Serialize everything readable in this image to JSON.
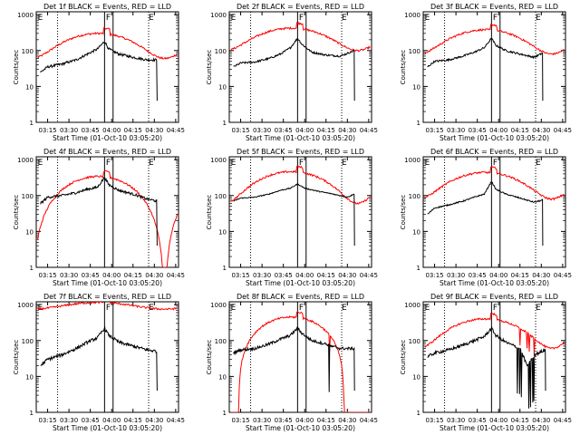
{
  "chart_data": {
    "type": "line",
    "grid_rows": 3,
    "grid_cols": 3,
    "shared": {
      "xlabel": "Start Time (01-Oct-10 03:05:20)",
      "ylabel": "Counts/sec",
      "x_ticks": [
        "03:15",
        "03:30",
        "03:45",
        "04:00",
        "04:15",
        "04:30",
        "04:45"
      ],
      "x_tick_minutes": [
        0,
        15,
        30,
        45,
        60,
        75,
        90
      ],
      "y_ticks": [
        "1",
        "10",
        "100",
        "1000"
      ],
      "y_tick_values": [
        1,
        10,
        100,
        1000
      ],
      "xlim_minutes": [
        -8,
        92
      ],
      "ylim": [
        1,
        1200
      ],
      "y_scale": "log",
      "series_colors": {
        "events": "#000000",
        "lld": "#ff0000"
      },
      "dotted_verticals_minutes": [
        7,
        71
      ],
      "solid_verticals_minutes": [
        40,
        46
      ],
      "flag_letters": [
        {
          "text": "E",
          "minute": -7
        },
        {
          "text": "F",
          "minute": 41
        },
        {
          "text": "E",
          "minute": 71
        }
      ]
    },
    "panels": [
      {
        "title": "Det 1f BLACK = Events, RED = LLD",
        "lld_base": 180,
        "lld_amp": 120,
        "events_curve": [
          [
            -5,
            25
          ],
          [
            0,
            35
          ],
          [
            10,
            42
          ],
          [
            20,
            55
          ],
          [
            28,
            80
          ],
          [
            35,
            110
          ],
          [
            40,
            180
          ],
          [
            43,
            110
          ],
          [
            50,
            80
          ],
          [
            60,
            65
          ],
          [
            70,
            55
          ],
          [
            77,
            55
          ]
        ],
        "events_start": -5,
        "events_end": 77,
        "noise": 0.08,
        "dip": null
      },
      {
        "title": "Det 2f BLACK = Events, RED = LLD",
        "lld_base": 260,
        "lld_amp": 160,
        "events_curve": [
          [
            -5,
            35
          ],
          [
            0,
            45
          ],
          [
            10,
            48
          ],
          [
            20,
            60
          ],
          [
            28,
            80
          ],
          [
            35,
            120
          ],
          [
            40,
            220
          ],
          [
            43,
            150
          ],
          [
            50,
            90
          ],
          [
            60,
            75
          ],
          [
            70,
            70
          ],
          [
            80,
            100
          ]
        ],
        "events_start": -5,
        "events_end": 80,
        "noise": 0.06,
        "dip": null
      },
      {
        "title": "Det 3f BLACK = Events, RED = LLD",
        "lld_base": 230,
        "lld_amp": 150,
        "events_curve": [
          [
            -5,
            35
          ],
          [
            0,
            50
          ],
          [
            10,
            55
          ],
          [
            20,
            70
          ],
          [
            28,
            90
          ],
          [
            35,
            120
          ],
          [
            40,
            220
          ],
          [
            43,
            140
          ],
          [
            50,
            100
          ],
          [
            60,
            80
          ],
          [
            70,
            65
          ],
          [
            76,
            85
          ]
        ],
        "events_start": -5,
        "events_end": 76,
        "noise": 0.06,
        "dip": null
      },
      {
        "title": "Det 4f BLACK = Events, RED = LLD",
        "lld_base": 170,
        "lld_amp": 170,
        "events_curve": [
          [
            -5,
            60
          ],
          [
            0,
            90
          ],
          [
            10,
            100
          ],
          [
            20,
            120
          ],
          [
            28,
            150
          ],
          [
            35,
            170
          ],
          [
            40,
            320
          ],
          [
            43,
            200
          ],
          [
            50,
            140
          ],
          [
            60,
            110
          ],
          [
            70,
            80
          ],
          [
            77,
            70
          ]
        ],
        "events_start": -5,
        "events_end": 77,
        "noise": 0.08,
        "dip": null
      },
      {
        "title": "Det 5f BLACK = Events, RED = LLD",
        "lld_base": 260,
        "lld_amp": 200,
        "events_curve": [
          [
            -5,
            70
          ],
          [
            0,
            85
          ],
          [
            10,
            90
          ],
          [
            20,
            110
          ],
          [
            28,
            140
          ],
          [
            35,
            160
          ],
          [
            40,
            210
          ],
          [
            45,
            160
          ],
          [
            55,
            130
          ],
          [
            65,
            110
          ],
          [
            75,
            90
          ],
          [
            80,
            110
          ]
        ],
        "events_start": -5,
        "events_end": 80,
        "noise": 0.03,
        "dip": null
      },
      {
        "title": "Det 6f BLACK = Events, RED = LLD",
        "lld_base": 260,
        "lld_amp": 180,
        "events_curve": [
          [
            -5,
            30
          ],
          [
            0,
            45
          ],
          [
            10,
            55
          ],
          [
            20,
            70
          ],
          [
            28,
            90
          ],
          [
            35,
            110
          ],
          [
            40,
            250
          ],
          [
            43,
            150
          ],
          [
            50,
            110
          ],
          [
            60,
            85
          ],
          [
            70,
            65
          ],
          [
            76,
            75
          ]
        ],
        "events_start": -5,
        "events_end": 76,
        "noise": 0.04,
        "dip": null
      },
      {
        "title": "Det 7f BLACK = Events, RED = LLD",
        "lld_base": 950,
        "lld_amp": 200,
        "events_curve": [
          [
            -5,
            20
          ],
          [
            0,
            30
          ],
          [
            10,
            40
          ],
          [
            20,
            60
          ],
          [
            28,
            90
          ],
          [
            35,
            120
          ],
          [
            40,
            220
          ],
          [
            43,
            140
          ],
          [
            50,
            90
          ],
          [
            60,
            70
          ],
          [
            70,
            55
          ],
          [
            77,
            50
          ]
        ],
        "events_start": -5,
        "events_end": 77,
        "noise": 0.1,
        "dip": null
      },
      {
        "title": "Det 8f BLACK = Events, RED = LLD",
        "lld_base": 200,
        "lld_amp": 250,
        "events_curve": [
          [
            -5,
            45
          ],
          [
            0,
            55
          ],
          [
            10,
            60
          ],
          [
            20,
            80
          ],
          [
            28,
            110
          ],
          [
            35,
            140
          ],
          [
            40,
            220
          ],
          [
            43,
            160
          ],
          [
            50,
            100
          ],
          [
            60,
            80
          ],
          [
            70,
            60
          ],
          [
            80,
            60
          ]
        ],
        "events_start": -5,
        "events_end": 80,
        "noise": 0.09,
        "dip": [
          62,
          66
        ]
      },
      {
        "title": "Det 9f BLACK = Events, RED = LLD",
        "lld_base": 230,
        "lld_amp": 170,
        "events_curve": [
          [
            -5,
            35
          ],
          [
            0,
            45
          ],
          [
            10,
            55
          ],
          [
            20,
            75
          ],
          [
            28,
            100
          ],
          [
            35,
            130
          ],
          [
            40,
            220
          ],
          [
            43,
            140
          ],
          [
            50,
            90
          ],
          [
            60,
            60
          ],
          [
            65,
            20
          ],
          [
            70,
            40
          ],
          [
            78,
            55
          ]
        ],
        "events_start": -5,
        "events_end": 78,
        "noise": 0.1,
        "dip": [
          58,
          70
        ]
      }
    ]
  }
}
